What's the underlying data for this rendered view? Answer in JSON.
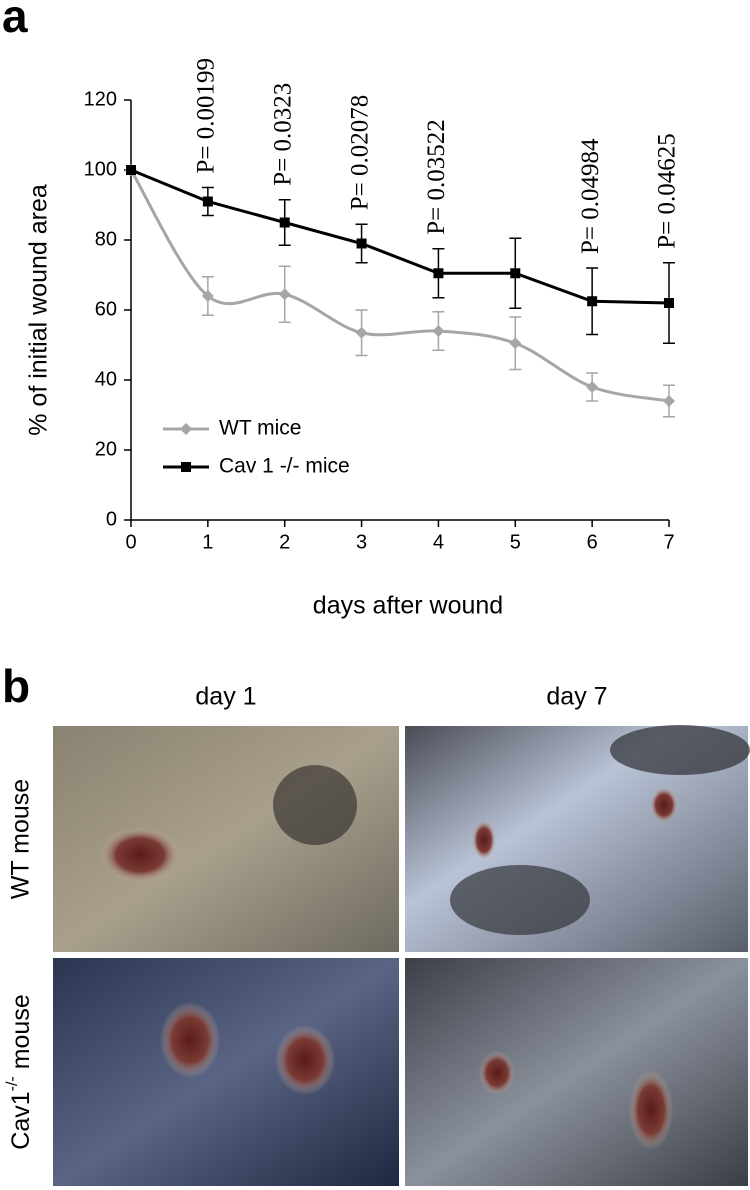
{
  "panel_labels": [
    "a",
    "b"
  ],
  "chart_data": {
    "type": "line",
    "x_label": "days after wound",
    "y_label": "% of initial wound area",
    "x": [
      0,
      1,
      2,
      3,
      4,
      5,
      6,
      7
    ],
    "series": [
      {
        "name": "WT mice",
        "color": "#a6a6a6",
        "marker": "diamond",
        "smooth": true,
        "values": [
          100,
          64,
          64.5,
          53.5,
          54,
          50.5,
          38,
          34
        ],
        "errors": [
          null,
          5.5,
          8,
          6.5,
          5.5,
          7.5,
          4,
          4.5
        ]
      },
      {
        "name": "Cav 1 -/- mice",
        "color": "#000000",
        "marker": "square",
        "smooth": false,
        "values": [
          100,
          91,
          85,
          79,
          70.5,
          70.5,
          62.5,
          62
        ],
        "errors": [
          null,
          4,
          6.5,
          5.5,
          7,
          10,
          9.5,
          11.5
        ]
      }
    ],
    "annotations": [
      {
        "x": 1,
        "text": "P= 0.00199"
      },
      {
        "x": 2,
        "text": "P= 0.0323"
      },
      {
        "x": 3,
        "text": "P= 0.02078"
      },
      {
        "x": 4,
        "text": "P= 0.03522"
      },
      {
        "x": 6,
        "text": "P= 0.04984"
      },
      {
        "x": 7,
        "text": "P= 0.04625"
      }
    ],
    "xlim": [
      0,
      7
    ],
    "xticks": [
      0,
      1,
      2,
      3,
      4,
      5,
      6,
      7
    ],
    "ylim": [
      0,
      120
    ],
    "yticks": [
      0,
      20,
      40,
      60,
      80,
      100,
      120
    ],
    "legend": "lower left",
    "grid": false
  },
  "photos": {
    "columns": [
      "day 1",
      "day 7"
    ],
    "rows": [
      "WT mouse",
      {
        "base": "Cav1",
        "sup": "-/-",
        "rest": " mouse"
      }
    ]
  }
}
